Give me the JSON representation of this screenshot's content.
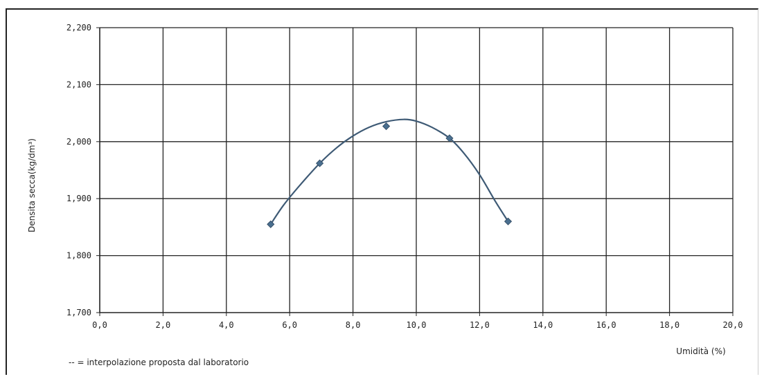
{
  "chart_data": {
    "type": "scatter",
    "xlabel": "Umidità (%)",
    "ylabel": "Densita secca(kg/dm³)",
    "xlim": [
      0,
      20
    ],
    "ylim": [
      1.7,
      2.2
    ],
    "x_ticks": [
      "0,0",
      "2,0",
      "4,0",
      "6,0",
      "8,0",
      "10,0",
      "12,0",
      "14,0",
      "16,0",
      "18,0",
      "20,0"
    ],
    "y_ticks": [
      "1,700",
      "1,800",
      "1,900",
      "2,000",
      "2,100",
      "2,200"
    ],
    "x_tick_values": [
      0,
      2,
      4,
      6,
      8,
      10,
      12,
      14,
      16,
      18,
      20
    ],
    "y_tick_values": [
      1.7,
      1.8,
      1.9,
      2.0,
      2.1,
      2.2
    ],
    "grid": true,
    "series": [
      {
        "type": "scatter",
        "marker": "diamond",
        "color": "#4a6f8f",
        "x": [
          5.4,
          6.95,
          9.05,
          11.05,
          12.9
        ],
        "y": [
          1.855,
          1.962,
          2.027,
          2.006,
          1.86
        ]
      },
      {
        "type": "line",
        "color": "#3e5a75",
        "x": [
          5.4,
          5.8,
          6.3,
          6.95,
          7.5,
          8.0,
          8.5,
          9.05,
          9.6,
          10.0,
          10.5,
          11.05,
          11.5,
          12.0,
          12.5,
          12.9
        ],
        "y": [
          1.855,
          1.888,
          1.922,
          1.962,
          1.99,
          2.01,
          2.025,
          2.035,
          2.039,
          2.036,
          2.025,
          2.006,
          1.98,
          1.942,
          1.895,
          1.86
        ]
      }
    ],
    "note": "-- = interpolazione proposta dal laboratorio",
    "colors": {
      "grid": "#222222",
      "marker": "#4a6f8f",
      "curve": "#3e5a75"
    }
  }
}
